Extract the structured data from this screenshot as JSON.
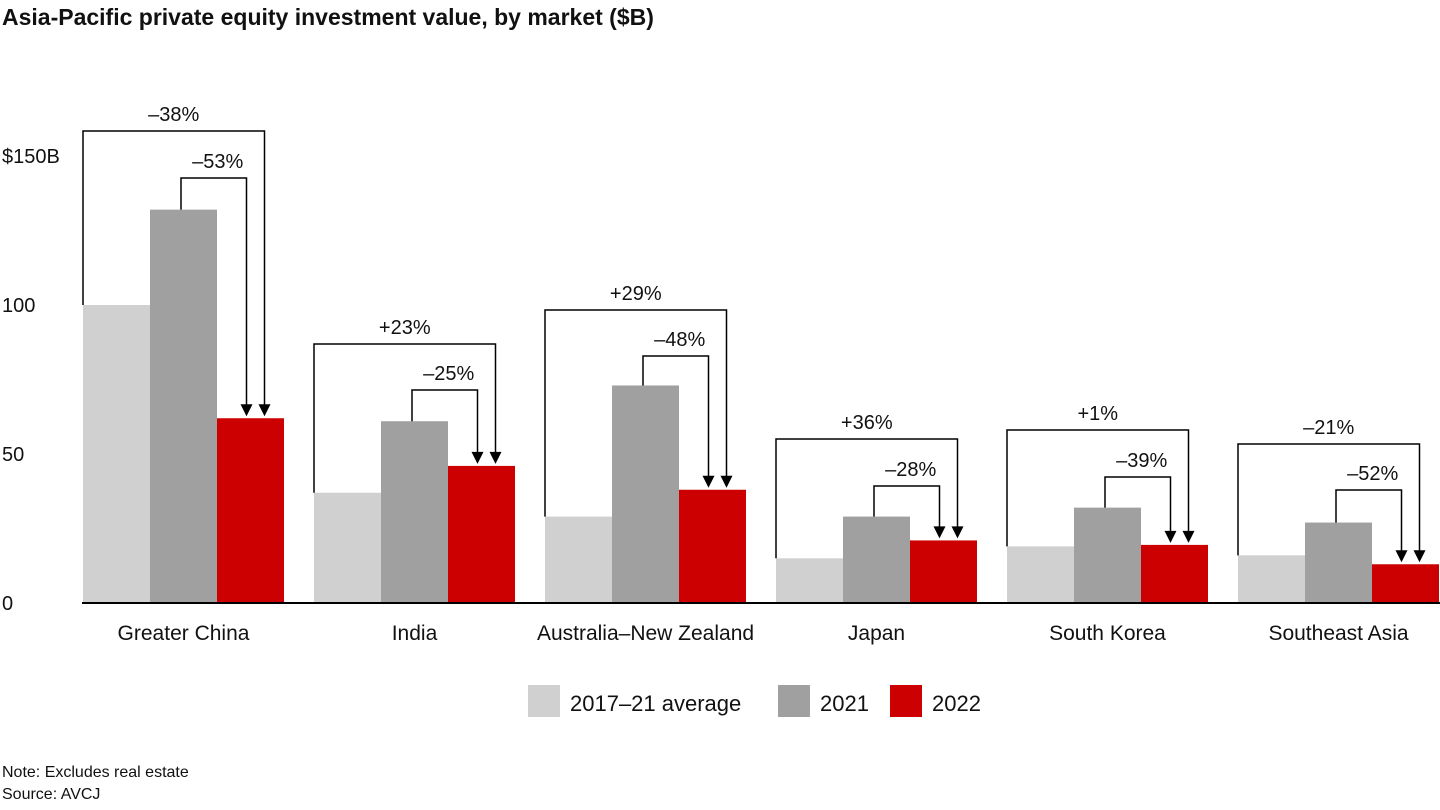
{
  "title": "Asia-Pacific private equity investment value, by market ($B)",
  "note": "Note: Excludes real estate",
  "source": "Source: AVCJ",
  "colors": {
    "avg": "#d0d0d0",
    "y2021": "#a0a0a0",
    "y2022": "#cc0000",
    "axis": "#000000",
    "bracket": "#000000"
  },
  "chart_data": {
    "type": "bar",
    "title": "Asia-Pacific private equity investment value, by market ($B)",
    "categories": [
      "Greater China",
      "India",
      "Australia–New Zealand",
      "Japan",
      "South Korea",
      "Southeast Asia"
    ],
    "series": [
      {
        "name": "2017–21 average",
        "color": "#d0d0d0",
        "values": [
          100,
          37,
          29,
          15,
          19,
          16
        ]
      },
      {
        "name": "2021",
        "color": "#a0a0a0",
        "values": [
          132,
          61,
          73,
          29,
          32,
          27
        ]
      },
      {
        "name": "2022",
        "color": "#cc0000",
        "values": [
          62,
          46,
          38,
          21,
          19.5,
          13
        ]
      }
    ],
    "y_ticks": [
      "0",
      "50",
      "100",
      "$150B"
    ],
    "y_tick_values": [
      0,
      50,
      100,
      150
    ],
    "ylim": [
      0,
      150
    ],
    "grid": false,
    "legend_position": "bottom",
    "annotations": [
      {
        "category": "Greater China",
        "vs_average": "–38%",
        "vs_2021": "–53%"
      },
      {
        "category": "India",
        "vs_average": "+23%",
        "vs_2021": "–25%"
      },
      {
        "category": "Australia–New Zealand",
        "vs_average": "+29%",
        "vs_2021": "–48%"
      },
      {
        "category": "Japan",
        "vs_average": "+36%",
        "vs_2021": "–28%"
      },
      {
        "category": "South Korea",
        "vs_average": "+1%",
        "vs_2021": "–39%"
      },
      {
        "category": "Southeast Asia",
        "vs_average": "–21%",
        "vs_2021": "–52%"
      }
    ]
  }
}
